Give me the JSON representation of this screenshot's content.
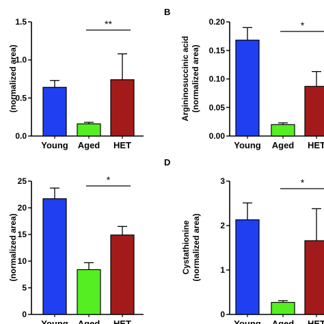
{
  "figure": {
    "panels": [
      {
        "letter": ""
      },
      {
        "letter": "B"
      },
      {
        "letter": ""
      },
      {
        "letter": "D"
      }
    ]
  },
  "colors": {
    "Young": "#1f3ff0",
    "Aged": "#55ee22",
    "HET": "#a31a1a",
    "axis": "#000000"
  },
  "chart_data": [
    {
      "type": "bar",
      "title": "",
      "xlabel": "",
      "ylabel": "(normalized area)",
      "categories": [
        "Young",
        "Aged",
        "HET"
      ],
      "values": [
        0.64,
        0.16,
        0.74
      ],
      "errors": [
        0.09,
        0.02,
        0.34
      ],
      "ylim": [
        0,
        1.5
      ],
      "yticks": [
        0,
        0.5,
        1.0,
        1.5
      ],
      "ytick_labels": [
        "0.0",
        "0.5",
        "1.0",
        "1.5"
      ],
      "significance": {
        "from": "Aged",
        "to": "HET",
        "label": "**"
      }
    },
    {
      "type": "bar",
      "title": "",
      "xlabel": "",
      "ylabel": "Argininosuccinic acid\n(normalized area)",
      "categories": [
        "Young",
        "Aged",
        "HET"
      ],
      "values": [
        0.168,
        0.02,
        0.087
      ],
      "errors": [
        0.022,
        0.003,
        0.026
      ],
      "ylim": [
        0,
        0.2
      ],
      "yticks": [
        0,
        0.05,
        0.1,
        0.15,
        0.2
      ],
      "ytick_labels": [
        "0.00",
        "0.05",
        "0.10",
        "0.15",
        "0.20"
      ],
      "significance": {
        "from": "Aged",
        "to": "HET",
        "label": "*"
      }
    },
    {
      "type": "bar",
      "title": "",
      "xlabel": "",
      "ylabel": "(normalized area)",
      "categories": [
        "Young",
        "Aged",
        "HET"
      ],
      "values": [
        21.7,
        8.4,
        14.9
      ],
      "errors": [
        2.0,
        1.3,
        1.6
      ],
      "ylim": [
        0,
        25
      ],
      "yticks": [
        0,
        5,
        10,
        15,
        20,
        25
      ],
      "ytick_labels": [
        "0",
        "5",
        "10",
        "15",
        "20",
        "25"
      ],
      "significance": {
        "from": "Aged",
        "to": "HET",
        "label": "*"
      }
    },
    {
      "type": "bar",
      "title": "",
      "xlabel": "",
      "ylabel": "Cystathionine\n(normalized area)",
      "categories": [
        "Young",
        "Aged",
        "HET"
      ],
      "values": [
        2.13,
        0.27,
        1.66
      ],
      "errors": [
        0.38,
        0.04,
        0.72
      ],
      "ylim": [
        0,
        3
      ],
      "yticks": [
        0,
        1,
        2,
        3
      ],
      "ytick_labels": [
        "0",
        "1",
        "2",
        "3"
      ],
      "significance": {
        "from": "Aged",
        "to": "HET",
        "label": "*"
      }
    }
  ]
}
